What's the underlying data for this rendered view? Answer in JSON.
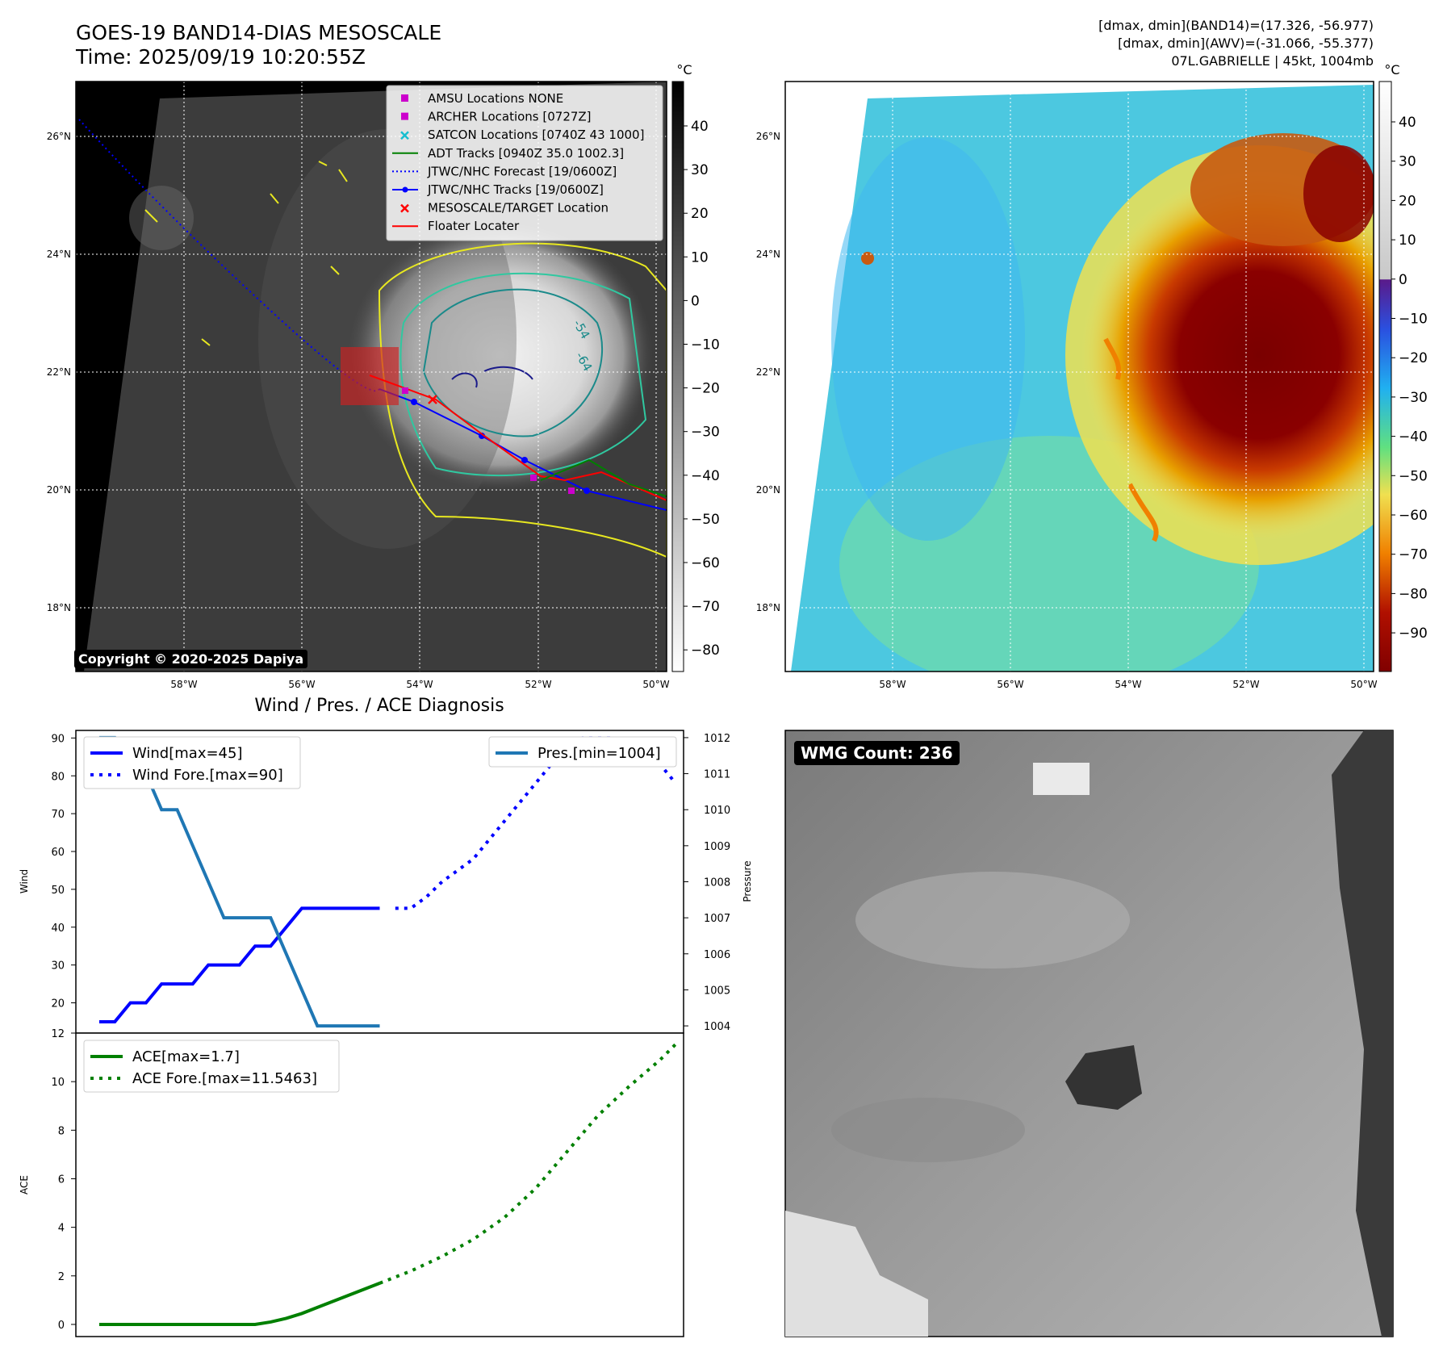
{
  "header": {
    "title_line1": "GOES-19 BAND14-DIAS MESOSCALE",
    "title_line2": "Time: 2025/09/19 10:20:55Z",
    "info_line1": "[dmax, dmin](BAND14)=(17.326, -56.977)",
    "info_line2": "[dmax, dmin](AWV)=(-31.066, -55.377)",
    "info_line3": "07L.GABRIELLE | 45kt, 1004mb",
    "copyright": "Copyright © 2020-2025 Dapiya"
  },
  "maps": {
    "lat_labels": [
      "26°N",
      "24°N",
      "22°N",
      "20°N",
      "18°N"
    ],
    "lon_labels": [
      "58°W",
      "56°W",
      "54°W",
      "52°W",
      "50°W"
    ],
    "colorbar_unit": "°C",
    "bw_colorbar_ticks": [
      "40",
      "30",
      "20",
      "10",
      "0",
      "−10",
      "−20",
      "−30",
      "−40",
      "−50",
      "−60",
      "−70",
      "−80"
    ],
    "jet_colorbar_ticks": [
      "40",
      "30",
      "20",
      "10",
      "0",
      "−10",
      "−20",
      "−30",
      "−40",
      "−50",
      "−60",
      "−70",
      "−80",
      "−90"
    ],
    "legend": [
      {
        "label": "AMSU Locations NONE",
        "marker": "square",
        "color": "#cc00cc"
      },
      {
        "label": "ARCHER Locations [0727Z]",
        "marker": "square",
        "color": "#cc00cc"
      },
      {
        "label": "SATCON Locations [0740Z 43 1000]",
        "marker": "x",
        "color": "#17becf"
      },
      {
        "label": "ADT Tracks [0940Z 35.0 1002.3]",
        "marker": "line",
        "color": "#008000"
      },
      {
        "label": "JTWC/NHC Forecast [19/0600Z]",
        "marker": "dotted",
        "color": "#0000ff"
      },
      {
        "label": "JTWC/NHC Tracks [19/0600Z]",
        "marker": "line-dot",
        "color": "#0000ff"
      },
      {
        "label": "MESOSCALE/TARGET Location",
        "marker": "x",
        "color": "#ff0000"
      },
      {
        "label": "Floater Locater",
        "marker": "line",
        "color": "#ff0000"
      }
    ],
    "contour_labels": [
      "-54",
      "-64"
    ]
  },
  "diagnosis": {
    "title": "Wind / Pres. / ACE Diagnosis",
    "wind_ylabel": "Wind",
    "pres_ylabel": "Pressure",
    "ace_ylabel": "ACE",
    "wind_legend": [
      "Wind[max=45]",
      "Wind Fore.[max=90]"
    ],
    "pres_legend": "Pres.[min=1004]",
    "ace_legend": [
      "ACE[max=1.7]",
      "ACE Fore.[max=11.5463]"
    ],
    "wmg": "WMG Count: 236"
  },
  "chart_data": [
    {
      "type": "line",
      "title": "Wind / Pres. / ACE Diagnosis",
      "ylabel": "Wind",
      "ylim": [
        12,
        92
      ],
      "yticks": [
        20,
        30,
        40,
        50,
        60,
        70,
        80,
        90
      ],
      "series": [
        {
          "name": "Wind[max=45]",
          "style": "solid",
          "color": "#0000ff",
          "x": [
            0,
            1,
            2,
            3,
            4,
            5,
            6,
            7,
            8,
            9,
            10,
            11,
            12,
            13,
            14,
            15,
            16,
            17,
            18
          ],
          "values": [
            15,
            15,
            20,
            20,
            25,
            25,
            25,
            30,
            30,
            30,
            35,
            35,
            40,
            45,
            45,
            45,
            45,
            45,
            45
          ]
        },
        {
          "name": "Wind Fore.[max=90]",
          "style": "dotted",
          "color": "#0000ff",
          "x": [
            19,
            20,
            21,
            22,
            23,
            24,
            25,
            26,
            27,
            28,
            29,
            30,
            31,
            32,
            33,
            34,
            35,
            36,
            37
          ],
          "values": [
            45,
            45,
            48,
            52,
            55,
            58,
            63,
            68,
            73,
            78,
            83,
            88,
            90,
            90,
            90,
            88,
            83,
            83,
            78
          ]
        }
      ]
    },
    {
      "type": "line",
      "ylabel": "Pressure",
      "ylim": [
        1003.8,
        1012.2
      ],
      "yticks": [
        1004,
        1005,
        1006,
        1007,
        1008,
        1009,
        1010,
        1011,
        1012
      ],
      "series": [
        {
          "name": "Pres.[min=1004]",
          "style": "solid",
          "color": "#1f77b4",
          "x": [
            0,
            1,
            2,
            3,
            4,
            5,
            6,
            7,
            8,
            9,
            10,
            11,
            12,
            13,
            14,
            15,
            16,
            17,
            18
          ],
          "values": [
            1012,
            1012,
            1011,
            1011,
            1010,
            1010,
            1009,
            1008,
            1007,
            1007,
            1007,
            1007,
            1006,
            1005,
            1004,
            1004,
            1004,
            1004,
            1004
          ]
        }
      ]
    },
    {
      "type": "line",
      "ylabel": "ACE",
      "ylim": [
        -0.5,
        12
      ],
      "yticks": [
        0,
        2,
        4,
        6,
        8,
        10,
        12
      ],
      "series": [
        {
          "name": "ACE[max=1.7]",
          "style": "solid",
          "color": "#008000",
          "x": [
            0,
            2,
            4,
            6,
            8,
            10,
            11,
            12,
            13,
            14,
            15,
            16,
            17,
            18
          ],
          "values": [
            0,
            0,
            0,
            0,
            0,
            0,
            0.1,
            0.25,
            0.45,
            0.7,
            0.95,
            1.2,
            1.45,
            1.7
          ]
        },
        {
          "name": "ACE Fore.[max=11.5463]",
          "style": "dotted",
          "color": "#008000",
          "x": [
            18,
            20,
            22,
            24,
            26,
            28,
            30,
            32,
            34,
            36,
            37
          ],
          "values": [
            1.7,
            2.2,
            2.8,
            3.5,
            4.4,
            5.6,
            7.1,
            8.6,
            9.8,
            10.9,
            11.5463
          ]
        }
      ]
    }
  ]
}
